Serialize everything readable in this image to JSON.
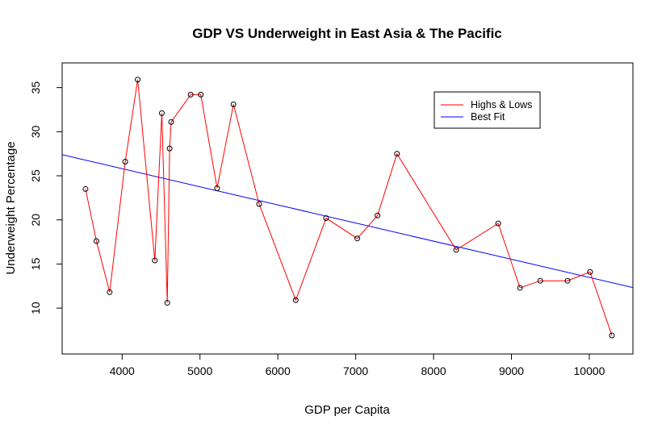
{
  "chart_data": {
    "type": "line",
    "title": "GDP VS Underweight in East Asia & The Pacific",
    "xlabel": "GDP per Capita",
    "ylabel": "Underweight Percentage",
    "xlim": [
      3230,
      10560
    ],
    "ylim": [
      4.8,
      37.8
    ],
    "xticks": [
      4000,
      5000,
      6000,
      7000,
      8000,
      9000,
      10000
    ],
    "yticks": [
      10,
      15,
      20,
      25,
      30,
      35
    ],
    "grid": false,
    "legend_position": "top-right",
    "series": [
      {
        "name": "Highs & Lows",
        "type": "line+points",
        "color": "#ff0000",
        "point_color": "#000000",
        "points": [
          [
            3530,
            23.5
          ],
          [
            3670,
            17.6
          ],
          [
            3840,
            11.8
          ],
          [
            4040,
            26.6
          ],
          [
            4200,
            35.9
          ],
          [
            4420,
            15.4
          ],
          [
            4510,
            32.1
          ],
          [
            4580,
            10.6
          ],
          [
            4610,
            28.1
          ],
          [
            4630,
            31.1
          ],
          [
            4880,
            34.2
          ],
          [
            5010,
            34.2
          ],
          [
            5220,
            23.6
          ],
          [
            5430,
            33.1
          ],
          [
            5760,
            21.8
          ],
          [
            6230,
            10.9
          ],
          [
            6620,
            20.2
          ],
          [
            7020,
            17.9
          ],
          [
            7280,
            20.5
          ],
          [
            7530,
            27.5
          ],
          [
            8290,
            16.6
          ],
          [
            8830,
            19.6
          ],
          [
            9110,
            12.3
          ],
          [
            9370,
            13.1
          ],
          [
            9720,
            13.1
          ],
          [
            10010,
            14.1
          ],
          [
            10290,
            6.9
          ]
        ]
      },
      {
        "name": "Best Fit",
        "type": "line",
        "color": "#0000ff",
        "slope": -0.002055,
        "intercept": 34.03
      }
    ]
  }
}
